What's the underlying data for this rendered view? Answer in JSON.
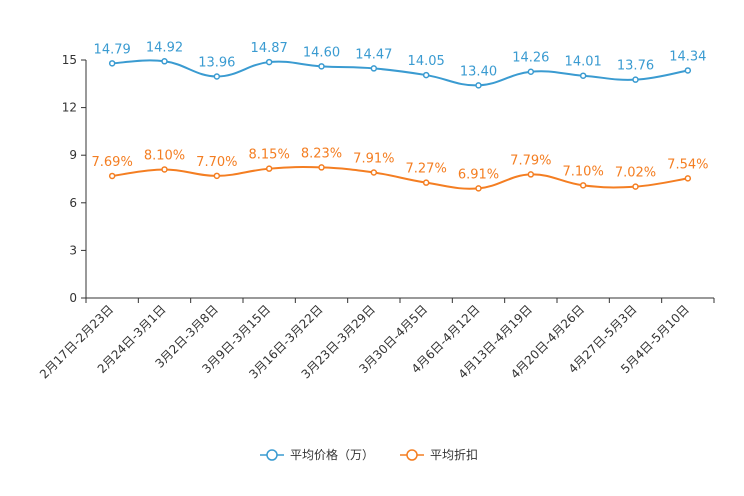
{
  "chart_data": {
    "type": "line",
    "categories": [
      "2月17日-2月23日",
      "2月24日-3月1日",
      "3月2日-3月8日",
      "3月9日-3月15日",
      "3月16日-3月22日",
      "3月23日-3月29日",
      "3月30日-4月5日",
      "4月6日-4月12日",
      "4月13日-4月19日",
      "4月20日-4月26日",
      "4月27日-5月3日",
      "5月4日-5月10日"
    ],
    "ylim": [
      0,
      15
    ],
    "yticks": [
      0,
      3,
      6,
      9,
      12,
      15
    ],
    "series": [
      {
        "name": "平均价格（万）",
        "color": "#3a9bd1",
        "values": [
          14.79,
          14.92,
          13.96,
          14.87,
          14.6,
          14.47,
          14.05,
          13.4,
          14.26,
          14.01,
          13.76,
          14.34
        ],
        "labels": [
          "14.79",
          "14.92",
          "13.96",
          "14.87",
          "14.60",
          "14.47",
          "14.05",
          "13.40",
          "14.26",
          "14.01",
          "13.76",
          "14.34"
        ]
      },
      {
        "name": "平均折扣",
        "color": "#f47e22",
        "values": [
          7.69,
          8.1,
          7.7,
          8.15,
          8.23,
          7.91,
          7.27,
          6.91,
          7.79,
          7.1,
          7.02,
          7.54
        ],
        "labels": [
          "7.69%",
          "8.10%",
          "7.70%",
          "8.15%",
          "8.23%",
          "7.91%",
          "7.27%",
          "6.91%",
          "7.79%",
          "7.10%",
          "7.02%",
          "7.54%"
        ]
      }
    ],
    "title": "",
    "xlabel": "",
    "ylabel": "",
    "legend_position": "bottom-center"
  }
}
